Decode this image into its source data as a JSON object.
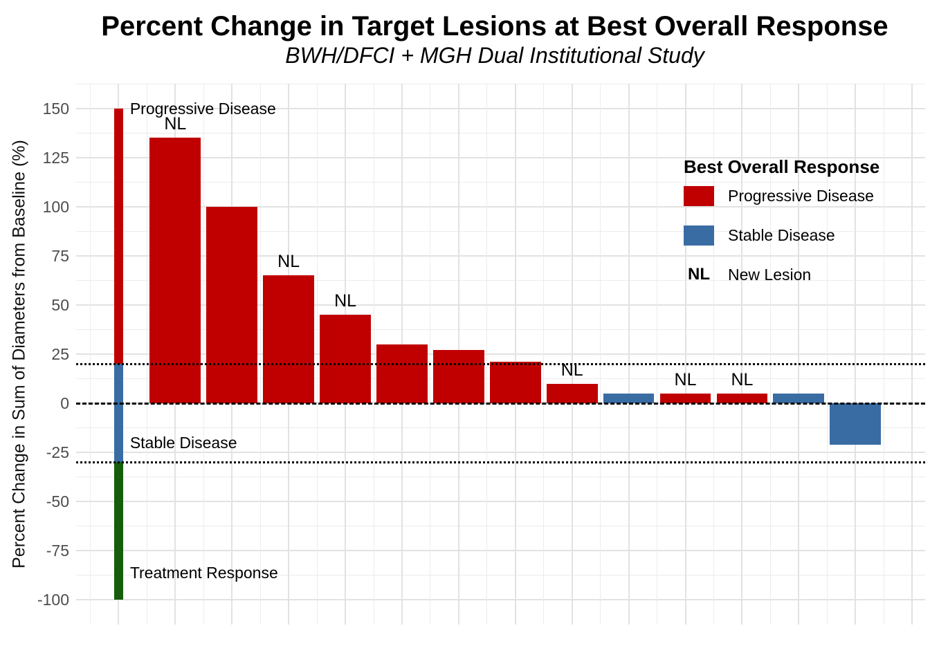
{
  "title": "Percent Change in Target Lesions at Best Overall Response",
  "subtitle": "BWH/DFCI + MGH Dual Institutional Study",
  "y_axis": {
    "label": "Percent Change in Sum of Diameters from Baseline (%)",
    "tick_labels": [
      "150",
      "125",
      "100",
      "75",
      "50",
      "25",
      "0",
      "-25",
      "-50",
      "-75",
      "-100"
    ]
  },
  "legend": {
    "title": "Best Overall Response",
    "items": [
      {
        "label": "Progressive Disease",
        "color": "#c00000"
      },
      {
        "label": "Stable Disease",
        "color": "#3a6ca4"
      },
      {
        "symbol": "NL",
        "label": "New Lesion"
      }
    ]
  },
  "colors": {
    "progressive_disease": "#c00000",
    "stable_disease": "#3a6ca4",
    "treatment_response": "#155c0b",
    "grid_major": "#e2e2e2",
    "grid_minor": "#ececec",
    "axis_text": "#4d4d4d"
  },
  "chart_data": {
    "type": "bar",
    "title": "Percent Change in Target Lesions at Best Overall Response",
    "subtitle": "BWH/DFCI + MGH Dual Institutional Study",
    "xlabel": "",
    "ylabel": "Percent Change in Sum of Diameters from Baseline (%)",
    "ylim": [
      -112.5,
      162.5
    ],
    "xlim": [
      -0.75,
      14.23
    ],
    "yticks": [
      150,
      125,
      100,
      75,
      50,
      25,
      0,
      -25,
      -50,
      -75,
      -100
    ],
    "grid": "major and minor, light gray on white",
    "legend_position": "inside top-right",
    "nl_symbol": "NL",
    "nl_label_offset_y": 7,
    "bar_width_units": 0.9,
    "bars": [
      {
        "patient": 1,
        "value": 135,
        "response": "Progressive Disease",
        "new_lesion": true
      },
      {
        "patient": 2,
        "value": 100,
        "response": "Progressive Disease",
        "new_lesion": false
      },
      {
        "patient": 3,
        "value": 65,
        "response": "Progressive Disease",
        "new_lesion": true
      },
      {
        "patient": 4,
        "value": 45,
        "response": "Progressive Disease",
        "new_lesion": true
      },
      {
        "patient": 5,
        "value": 30,
        "response": "Progressive Disease",
        "new_lesion": false
      },
      {
        "patient": 6,
        "value": 27,
        "response": "Progressive Disease",
        "new_lesion": false
      },
      {
        "patient": 7,
        "value": 21,
        "response": "Progressive Disease",
        "new_lesion": false
      },
      {
        "patient": 8,
        "value": 10,
        "response": "Progressive Disease",
        "new_lesion": true
      },
      {
        "patient": 9,
        "value": 5,
        "response": "Stable Disease",
        "new_lesion": false
      },
      {
        "patient": 10,
        "value": 5,
        "response": "Progressive Disease",
        "new_lesion": true
      },
      {
        "patient": 11,
        "value": 5,
        "response": "Progressive Disease",
        "new_lesion": true
      },
      {
        "patient": 12,
        "value": 5,
        "response": "Stable Disease",
        "new_lesion": false
      },
      {
        "patient": 13,
        "value": -21,
        "response": "Stable Disease",
        "new_lesion": false
      }
    ],
    "reference_lines": [
      {
        "y": 20,
        "style": "dotted",
        "meaning": "progressive disease threshold"
      },
      {
        "y": 0,
        "style": "dashed",
        "meaning": "baseline"
      },
      {
        "y": -30,
        "style": "dotted",
        "meaning": "response threshold"
      }
    ],
    "zone_bar": {
      "x_center": 0,
      "width_units": 0.16,
      "segments": [
        {
          "label": "Progressive Disease",
          "from": 20,
          "to": 150,
          "color": "#c00000"
        },
        {
          "label": "Stable Disease",
          "from": -30,
          "to": 20,
          "color": "#3a6ca4"
        },
        {
          "label": "Treatment Response",
          "from": -100,
          "to": -30,
          "color": "#155c0b"
        }
      ]
    },
    "zone_labels": [
      {
        "text": "Progressive Disease",
        "x": 0.2,
        "y": 150
      },
      {
        "text": "Stable Disease",
        "x": 0.2,
        "y": -20
      },
      {
        "text": "Treatment Response",
        "x": 0.2,
        "y": -86
      }
    ]
  }
}
